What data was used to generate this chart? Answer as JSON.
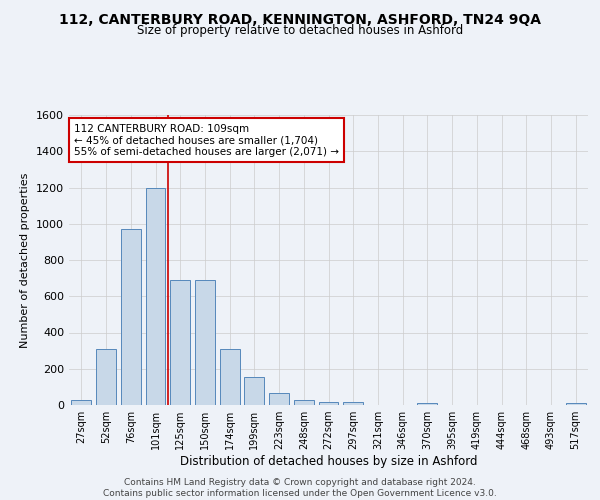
{
  "title": "112, CANTERBURY ROAD, KENNINGTON, ASHFORD, TN24 9QA",
  "subtitle": "Size of property relative to detached houses in Ashford",
  "xlabel": "Distribution of detached houses by size in Ashford",
  "ylabel": "Number of detached properties",
  "categories": [
    "27sqm",
    "52sqm",
    "76sqm",
    "101sqm",
    "125sqm",
    "150sqm",
    "174sqm",
    "199sqm",
    "223sqm",
    "248sqm",
    "272sqm",
    "297sqm",
    "321sqm",
    "346sqm",
    "370sqm",
    "395sqm",
    "419sqm",
    "444sqm",
    "468sqm",
    "493sqm",
    "517sqm"
  ],
  "values": [
    25,
    310,
    970,
    1200,
    690,
    690,
    310,
    155,
    65,
    25,
    15,
    15,
    0,
    0,
    10,
    0,
    0,
    0,
    0,
    0,
    10
  ],
  "bar_color": "#c8d8e8",
  "bar_edge_color": "#5588bb",
  "grid_color": "#cccccc",
  "bg_color": "#eef2f8",
  "vline_x": 3.5,
  "vline_color": "#cc0000",
  "annotation_line1": "112 CANTERBURY ROAD: 109sqm",
  "annotation_line2": "← 45% of detached houses are smaller (1,704)",
  "annotation_line3": "55% of semi-detached houses are larger (2,071) →",
  "annotation_box_color": "#ffffff",
  "annotation_box_edge": "#cc0000",
  "footer_line1": "Contains HM Land Registry data © Crown copyright and database right 2024.",
  "footer_line2": "Contains public sector information licensed under the Open Government Licence v3.0.",
  "ylim": [
    0,
    1600
  ],
  "yticks": [
    0,
    200,
    400,
    600,
    800,
    1000,
    1200,
    1400,
    1600
  ]
}
